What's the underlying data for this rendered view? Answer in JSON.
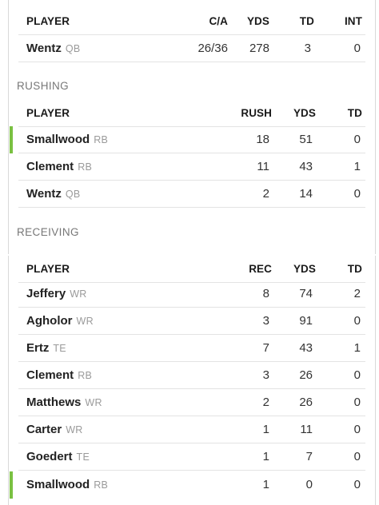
{
  "passing": {
    "headers": [
      "PLAYER",
      "C/A",
      "YDS",
      "TD",
      "INT"
    ],
    "rows": [
      {
        "name": "Wentz",
        "pos": "QB",
        "stats": [
          "26/36",
          "278",
          "3",
          "0"
        ]
      }
    ]
  },
  "rushing": {
    "section_label": "RUSHING",
    "headers": [
      "PLAYER",
      "RUSH",
      "YDS",
      "TD"
    ],
    "rows": [
      {
        "name": "Smallwood",
        "pos": "RB",
        "stats": [
          "18",
          "51",
          "0"
        ],
        "highlight": true
      },
      {
        "name": "Clement",
        "pos": "RB",
        "stats": [
          "11",
          "43",
          "1"
        ]
      },
      {
        "name": "Wentz",
        "pos": "QB",
        "stats": [
          "2",
          "14",
          "0"
        ]
      }
    ]
  },
  "receiving": {
    "section_label": "RECEIVING",
    "headers": [
      "PLAYER",
      "REC",
      "YDS",
      "TD"
    ],
    "rows": [
      {
        "name": "Jeffery",
        "pos": "WR",
        "stats": [
          "8",
          "74",
          "2"
        ]
      },
      {
        "name": "Agholor",
        "pos": "WR",
        "stats": [
          "3",
          "91",
          "0"
        ]
      },
      {
        "name": "Ertz",
        "pos": "TE",
        "stats": [
          "7",
          "43",
          "1"
        ]
      },
      {
        "name": "Clement",
        "pos": "RB",
        "stats": [
          "3",
          "26",
          "0"
        ]
      },
      {
        "name": "Matthews",
        "pos": "WR",
        "stats": [
          "2",
          "26",
          "0"
        ]
      },
      {
        "name": "Carter",
        "pos": "WR",
        "stats": [
          "1",
          "11",
          "0"
        ]
      },
      {
        "name": "Goedert",
        "pos": "TE",
        "stats": [
          "1",
          "7",
          "0"
        ]
      },
      {
        "name": "Smallwood",
        "pos": "RB",
        "stats": [
          "1",
          "0",
          "0"
        ],
        "highlight": true
      }
    ]
  },
  "colors": {
    "highlight_bar": "#7ac142",
    "position_text": "#9a9a9a",
    "divider": "#e3e3e3"
  }
}
